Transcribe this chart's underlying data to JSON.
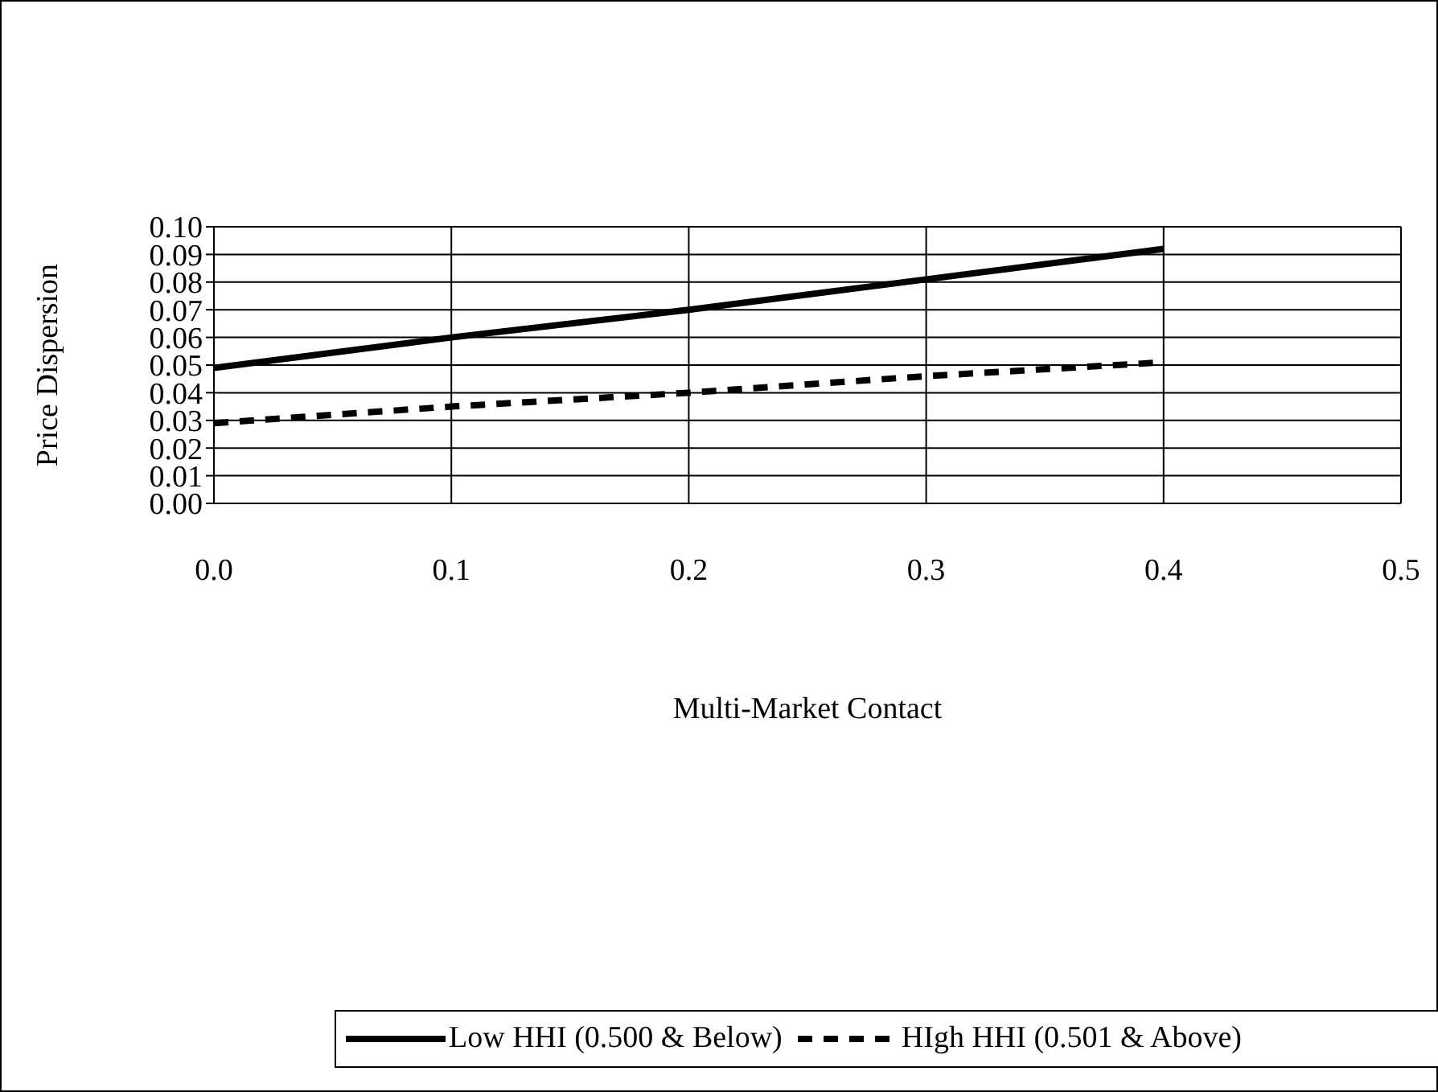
{
  "chart_data": {
    "type": "line",
    "xlabel": "Multi-Market Contact",
    "ylabel": "Price Dispersion",
    "x": [
      0,
      0.1,
      0.2,
      0.3,
      0.4
    ],
    "series": [
      {
        "name": "Low HHI (0.500 & Below)",
        "color": "#000000",
        "line_style": "solid",
        "values": [
          0.049,
          0.06,
          0.07,
          0.081,
          0.092
        ]
      },
      {
        "name": "HIgh HHI (0.501 & Above)",
        "color": "#000000",
        "line_style": "dashed",
        "values": [
          0.029,
          0.035,
          0.04,
          0.046,
          0.051
        ]
      }
    ],
    "xlim": [
      0,
      0.5
    ],
    "xticks": [
      {
        "value": 0,
        "label": "0.0"
      },
      {
        "value": 0.1,
        "label": "0.1"
      },
      {
        "value": 0.2,
        "label": "0.2"
      },
      {
        "value": 0.3,
        "label": "0.3"
      },
      {
        "value": 0.4,
        "label": "0.4"
      },
      {
        "value": 0.5,
        "label": "0.5"
      }
    ],
    "ylim": [
      0,
      0.1
    ],
    "yticks": [
      {
        "value": 0,
        "label": "0.00"
      },
      {
        "value": 0.01,
        "label": "0.01"
      },
      {
        "value": 0.02,
        "label": "0.02"
      },
      {
        "value": 0.03,
        "label": "0.03"
      },
      {
        "value": 0.04,
        "label": "0.04"
      },
      {
        "value": 0.05,
        "label": "0.05"
      },
      {
        "value": 0.06,
        "label": "0.06"
      },
      {
        "value": 0.07,
        "label": "0.07"
      },
      {
        "value": 0.08,
        "label": "0.08"
      },
      {
        "value": 0.09,
        "label": "0.09"
      },
      {
        "value": 0.1,
        "label": "0.10"
      }
    ],
    "grid": true,
    "legend": "bottom",
    "marker": "none"
  }
}
